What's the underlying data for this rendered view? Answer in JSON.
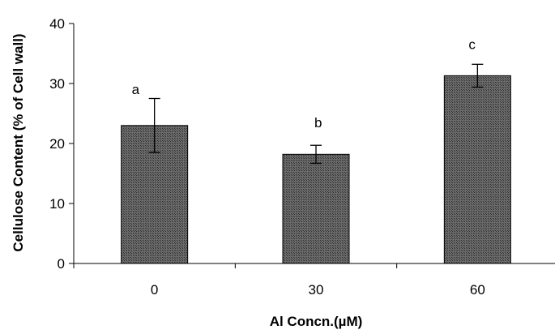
{
  "chart_data": {
    "type": "bar",
    "title": "",
    "xlabel": "Al Concn.(µM)",
    "ylabel": "Cellulose Content (% of Cell wall)",
    "categories": [
      "0",
      "30",
      "60"
    ],
    "values": [
      23.0,
      18.2,
      31.3
    ],
    "errors": [
      4.5,
      1.5,
      1.9
    ],
    "annotations": [
      "a",
      "b",
      "c"
    ],
    "ylim": [
      0,
      40
    ],
    "yticks": [
      "0",
      "10",
      "20",
      "30",
      "40"
    ],
    "bar_color": "#5a5a5a",
    "grid": false
  }
}
